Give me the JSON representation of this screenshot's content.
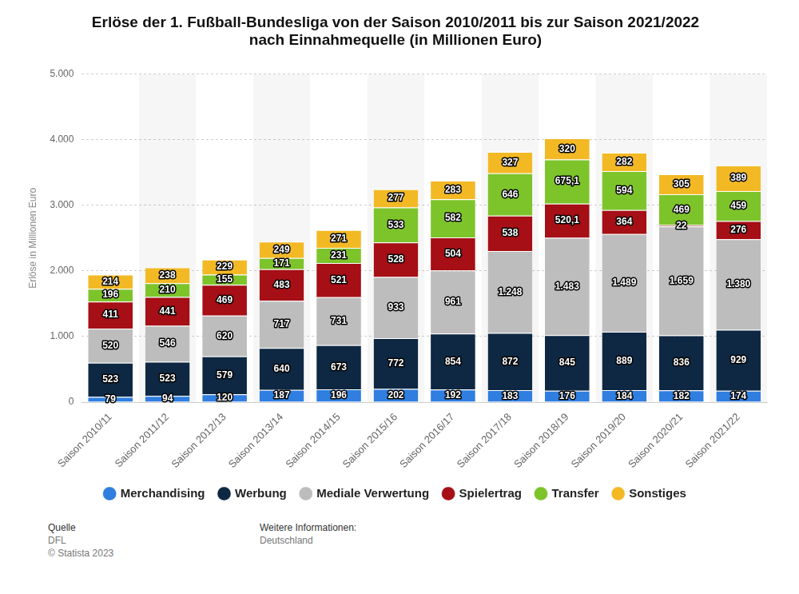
{
  "chart_data": {
    "type": "bar",
    "title": [
      "Erlöse der 1. Fußball-Bundesliga von der Saison 2010/2011 bis zur Saison 2021/2022",
      "nach Einnahmequelle (in Millionen Euro)"
    ],
    "y_label": "Erlöse in Millionen Euro",
    "categories": [
      "Saison 2010/11",
      "Saison 2011/12",
      "Saison 2012/13",
      "Saison 2013/14",
      "Saison 2014/15",
      "Saison 2015/16",
      "Saison 2016/17",
      "Saison 2017/18",
      "Saison 2018/19",
      "Saison 2019/20",
      "Saison 2020/21",
      "Saison 2021/22"
    ],
    "series": [
      {
        "name": "Merchandising",
        "color": "#2f7ee0",
        "values": [
          79,
          94,
          120,
          187,
          196,
          202,
          192,
          183,
          176,
          184,
          182,
          174
        ],
        "value_labels": [
          "79",
          "94",
          "120",
          "187",
          "196",
          "202",
          "192",
          "183",
          "176",
          "184",
          "182",
          "174"
        ]
      },
      {
        "name": "Werbung",
        "color": "#0e2843",
        "values": [
          523,
          523,
          579,
          640,
          673,
          772,
          854,
          872,
          845,
          889,
          836,
          929
        ],
        "value_labels": [
          "523",
          "523",
          "579",
          "640",
          "673",
          "772",
          "854",
          "872",
          "845",
          "889",
          "836",
          "929"
        ]
      },
      {
        "name": "Mediale Verwertung",
        "color": "#bdbdbd",
        "values": [
          520,
          546,
          620,
          717,
          731,
          933,
          961,
          1248,
          1483,
          1489,
          1659,
          1380
        ],
        "value_labels": [
          "520",
          "546",
          "620",
          "717",
          "731",
          "933",
          "961",
          "1.248",
          "1.483",
          "1.489",
          "1.659",
          "1.380"
        ]
      },
      {
        "name": "Spielertrag",
        "color": "#a50f15",
        "values": [
          411,
          441,
          469,
          483,
          521,
          528,
          504,
          538,
          520.1,
          364,
          22,
          276
        ],
        "value_labels": [
          "411",
          "441",
          "469",
          "483",
          "521",
          "528",
          "504",
          "538",
          "520,1",
          "364",
          "22",
          "276"
        ]
      },
      {
        "name": "Transfer",
        "color": "#7dc42b",
        "values": [
          196,
          210,
          155,
          171,
          231,
          533,
          582,
          646,
          675.1,
          594,
          469,
          459
        ],
        "value_labels": [
          "196",
          "210",
          "155",
          "171",
          "231",
          "533",
          "582",
          "646",
          "675,1",
          "594",
          "469",
          "459"
        ]
      },
      {
        "name": "Sonstiges",
        "color": "#f3b925",
        "values": [
          214,
          238,
          229,
          249,
          271,
          277,
          283,
          327,
          320,
          282,
          305,
          389
        ],
        "value_labels": [
          "214",
          "238",
          "229",
          "249",
          "271",
          "277",
          "283",
          "327",
          "320",
          "282",
          "305",
          "389"
        ]
      }
    ],
    "ylim": [
      0,
      5000
    ],
    "yticks": [
      0,
      {
        "value": 1000,
        "label": "1.000"
      },
      {
        "value": 2000,
        "label": "2.000"
      },
      {
        "value": 3000,
        "label": "3.000"
      },
      {
        "value": 4000,
        "label": "4.000"
      },
      {
        "value": 5000,
        "label": "5.000"
      }
    ],
    "stacked": true,
    "data_labels": true,
    "grid": true,
    "legend": "bottom",
    "source_label": "Quelle",
    "source": "DFL",
    "copyright": "© Statista 2023",
    "info_label": "Weitere Informationen:",
    "info": "Deutschland"
  }
}
